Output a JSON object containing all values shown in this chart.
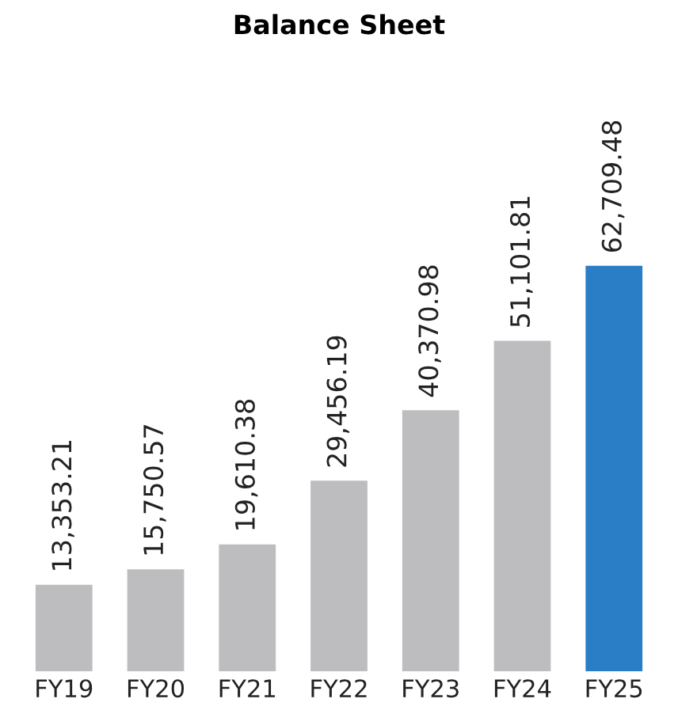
{
  "chart_data": {
    "type": "bar",
    "title": "Balance Sheet",
    "categories": [
      "FY19",
      "FY20",
      "FY21",
      "FY22",
      "FY23",
      "FY24",
      "FY25"
    ],
    "values": [
      13353.21,
      15750.57,
      19610.38,
      29456.19,
      40370.98,
      51101.81,
      62709.48
    ],
    "colors": [
      "#bdbdc0",
      "#bdbdc0",
      "#bdbdc0",
      "#bdbdc0",
      "#bdbdc0",
      "#bdbdc0",
      "#2a7ec6"
    ],
    "value_labels": [
      "13,353.21",
      "15,750.57",
      "19,610.38",
      "29,456.19",
      "40,370.98",
      "51,101.81",
      "62,709.48"
    ],
    "grid": false
  }
}
